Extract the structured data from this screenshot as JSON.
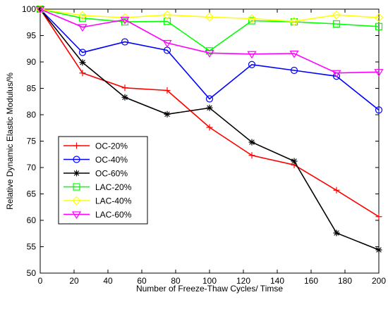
{
  "chart_data": {
    "type": "line",
    "xlabel": "Number of Freeze-Thaw Cycles/ Timse",
    "ylabel": "Relative Dynamic Elastic Modulus/%",
    "xlim": [
      0,
      200
    ],
    "ylim": [
      50,
      100
    ],
    "xticks": [
      0,
      20,
      40,
      60,
      80,
      100,
      120,
      140,
      160,
      180,
      200
    ],
    "yticks": [
      50,
      55,
      60,
      65,
      70,
      75,
      80,
      85,
      90,
      95,
      100
    ],
    "grid": false,
    "legend_position": "lower-left",
    "series": [
      {
        "name": "OC-20%",
        "color": "#ff0000",
        "marker": "plus",
        "x": [
          0,
          25,
          50,
          75,
          100,
          125,
          150,
          175,
          200
        ],
        "y": [
          100,
          87.9,
          85.1,
          84.6,
          77.6,
          72.3,
          70.5,
          65.7,
          60.7
        ]
      },
      {
        "name": "OC-40%",
        "color": "#0000ff",
        "marker": "circle",
        "x": [
          0,
          25,
          50,
          75,
          100,
          125,
          150,
          175,
          200
        ],
        "y": [
          100,
          91.8,
          93.8,
          92.2,
          83.0,
          89.5,
          88.4,
          87.3,
          80.9
        ]
      },
      {
        "name": "OC-60%",
        "color": "#000000",
        "marker": "star",
        "x": [
          0,
          25,
          50,
          75,
          100,
          125,
          150,
          175,
          200
        ],
        "y": [
          100,
          89.9,
          83.3,
          80.1,
          81.3,
          74.8,
          71.2,
          57.6,
          54.4
        ]
      },
      {
        "name": "LAC-20%",
        "color": "#00ff00",
        "marker": "square",
        "x": [
          0,
          25,
          50,
          75,
          100,
          125,
          150,
          175,
          200
        ],
        "y": [
          100,
          98.3,
          97.6,
          97.7,
          92.1,
          97.8,
          97.6,
          97.2,
          96.7
        ]
      },
      {
        "name": "LAC-40%",
        "color": "#ffff00",
        "marker": "diamond",
        "x": [
          0,
          25,
          50,
          75,
          100,
          125,
          150,
          175,
          200
        ],
        "y": [
          100,
          98.8,
          98.4,
          98.9,
          98.5,
          98.2,
          97.7,
          98.9,
          98.4
        ]
      },
      {
        "name": "LAC-60%",
        "color": "#ff00ff",
        "marker": "triangle-down",
        "x": [
          0,
          25,
          50,
          75,
          100,
          125,
          150,
          175,
          200
        ],
        "y": [
          100,
          96.6,
          98.0,
          93.6,
          91.7,
          91.5,
          91.6,
          87.9,
          88.1
        ]
      }
    ]
  }
}
